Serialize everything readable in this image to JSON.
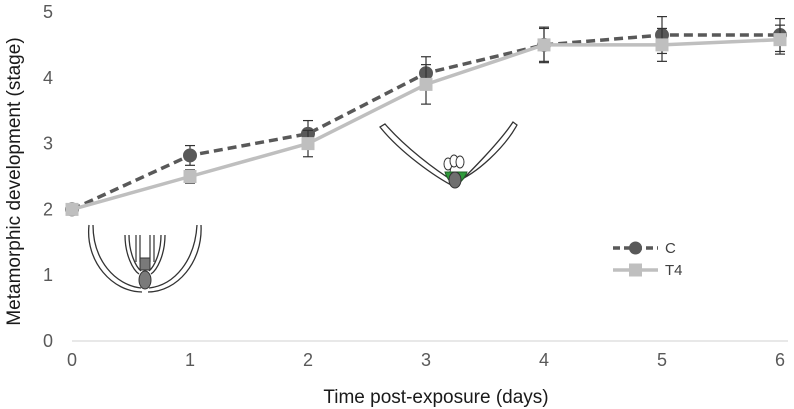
{
  "chart_data": {
    "type": "line",
    "xlabel": "Time post-exposure (days)",
    "ylabel": "Metamorphic development (stage)",
    "x": [
      0,
      1,
      2,
      3,
      4,
      5,
      6
    ],
    "xlim": [
      0,
      6
    ],
    "ylim": [
      0,
      5
    ],
    "xticks": [
      "0",
      "1",
      "2",
      "3",
      "4",
      "5",
      "6"
    ],
    "yticks": [
      "0",
      "1",
      "2",
      "3",
      "4",
      "5"
    ],
    "grid": false,
    "legend_position": "right",
    "series": [
      {
        "name": "C",
        "values": [
          2.0,
          2.82,
          3.15,
          4.07,
          4.5,
          4.65,
          4.65
        ],
        "errors": [
          0.0,
          0.15,
          0.2,
          0.25,
          0.27,
          0.28,
          0.25
        ],
        "color": "#595959",
        "line_style": "dashed",
        "marker": "circle"
      },
      {
        "name": "T4",
        "values": [
          2.0,
          2.5,
          3.0,
          3.9,
          4.5,
          4.5,
          4.58
        ],
        "errors": [
          0.0,
          0.1,
          0.2,
          0.3,
          0.25,
          0.25,
          0.22
        ],
        "color": "#bfbfbf",
        "line_style": "solid",
        "marker": "square"
      }
    ],
    "illustrations": [
      "tadpole-early-stage-icon",
      "tadpole-metamorphosis-stage-icon"
    ]
  }
}
